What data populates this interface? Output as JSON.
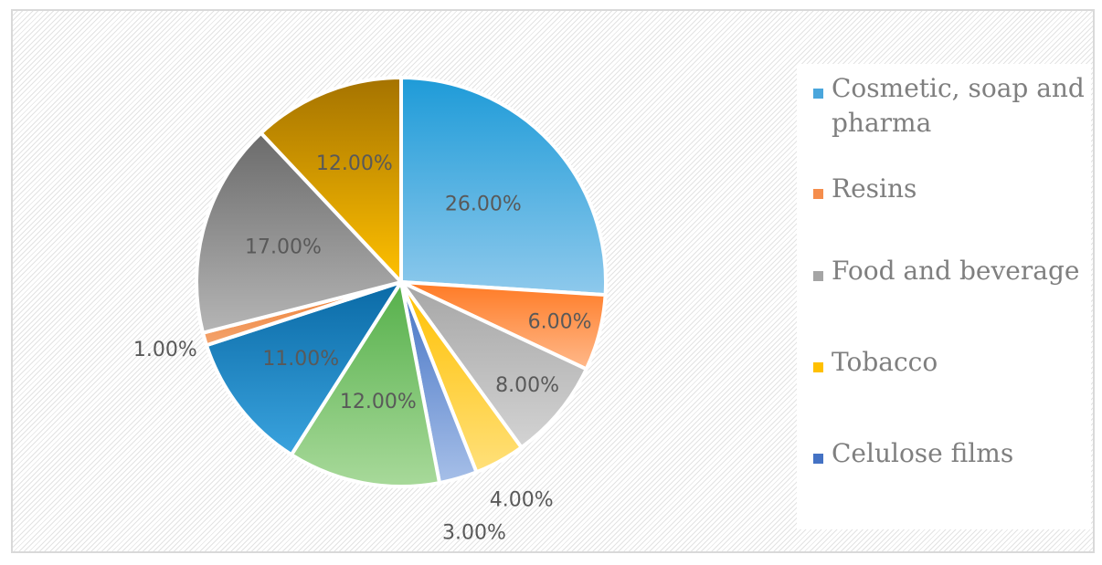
{
  "chart_data": {
    "type": "pie",
    "slices": [
      {
        "value": 26,
        "label": "26.00%",
        "color_a": "#1e9bd8",
        "color_b": "#8ec9ec"
      },
      {
        "value": 6,
        "label": "6.00%",
        "color_a": "#ff7a24",
        "color_b": "#ffb98b"
      },
      {
        "value": 8,
        "label": "8.00%",
        "color_a": "#a6a6a6",
        "color_b": "#d3d3d3"
      },
      {
        "value": 4,
        "label": "4.00%",
        "color_a": "#ffc000",
        "color_b": "#ffe07a"
      },
      {
        "value": 3,
        "label": "3.00%",
        "color_a": "#4472c4",
        "color_b": "#a6bfe8"
      },
      {
        "value": 12,
        "label": "12.00%",
        "color_a": "#55b04a",
        "color_b": "#a8d99a"
      },
      {
        "value": 11,
        "label": "11.00%",
        "color_a": "#0a6aa6",
        "color_b": "#3aa3de"
      },
      {
        "value": 1,
        "label": "1.00%",
        "color_a": "#ed7d31",
        "color_b": "#f4a46e"
      },
      {
        "value": 17,
        "label": "17.00%",
        "color_a": "#6b6b6b",
        "color_b": "#b5b5b5"
      },
      {
        "value": 12,
        "label": "12.00%",
        "color_a": "#a57300",
        "color_b": "#ffc000"
      }
    ],
    "legend": [
      {
        "label": "Cosmetic, soap and pharma",
        "color": "#4aa6dc"
      },
      {
        "label": "Resins",
        "color": "#f58d4c"
      },
      {
        "label": "Food and beverage",
        "color": "#a5a5a5"
      },
      {
        "label": "Tobacco",
        "color": "#ffc000"
      },
      {
        "label": "Celulose films",
        "color": "#4472c4"
      }
    ],
    "legend_position": "right",
    "grid": false
  }
}
